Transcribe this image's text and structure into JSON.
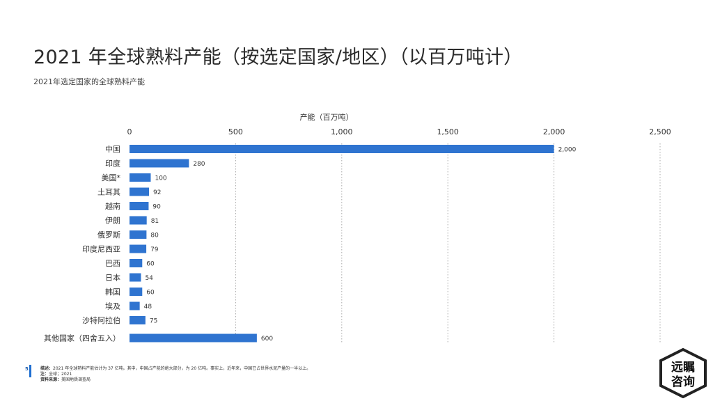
{
  "header": {
    "title": "2021 年全球熟料产能（按选定国家/地区）（以百万吨计）",
    "subtitle": "2021年选定国家的全球熟料产能"
  },
  "colors": {
    "bar": "#2f74d0",
    "grid": "#a9a9a9",
    "text": "#333333"
  },
  "chart_data": {
    "type": "bar",
    "orientation": "horizontal",
    "xlabel": "产能（百万吨）",
    "xlim": [
      0,
      2500
    ],
    "xticks": [
      0,
      500,
      1000,
      1500,
      2000,
      2500
    ],
    "xtick_labels": [
      "0",
      "500",
      "1,000",
      "1,500",
      "2,000",
      "2,500"
    ],
    "axis_position": "top",
    "grid": "vertical dotted",
    "categories": [
      "中国",
      "印度",
      "美国*",
      "土耳其",
      "越南",
      "伊朗",
      "俄罗斯",
      "印度尼西亚",
      "巴西",
      "日本",
      "韩国",
      "埃及",
      "沙特阿拉伯",
      "其他国家（四舍五入）"
    ],
    "values": [
      2000,
      280,
      100,
      92,
      90,
      81,
      80,
      79,
      60,
      54,
      60,
      48,
      75,
      600
    ],
    "value_labels": [
      "2,000",
      "280",
      "100",
      "92",
      "90",
      "81",
      "80",
      "79",
      "60",
      "54",
      "60",
      "48",
      "75",
      "600"
    ]
  },
  "footer": {
    "page_number": "5",
    "desc_label": "描述：",
    "desc_text": "2021 年全球熟料产能估计为 37 亿吨。其中，中国占产能的绝大部分，为 20 亿吨。事实上，近年来，中国已占世界水泥产量的一半以上。",
    "note_label": "注：",
    "note_text": "全球；2021",
    "source_label": "资料来源：",
    "source_text": "美国地质调查局"
  },
  "logo": {
    "line1": "远瞩",
    "line2": "咨询"
  }
}
